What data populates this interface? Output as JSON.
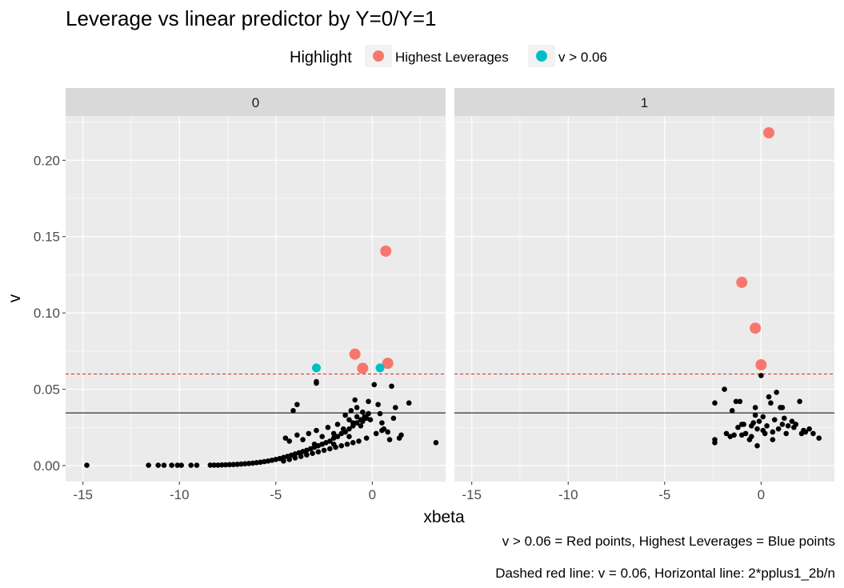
{
  "colors": {
    "panel_bg": "#EBEBEB",
    "strip_bg": "#D9D9D9",
    "grid": "#FFFFFF",
    "highest_leverages": "#F8766D",
    "v_gt": "#00BFC4",
    "point": "#000000",
    "dashed_line": "#E41A1C",
    "hline": "#000000"
  },
  "chart_data": {
    "type": "scatter",
    "title": "Leverage vs linear predictor by Y=0/Y=1",
    "xlabel": "xbeta",
    "ylabel": "v",
    "xlim": [
      -15.9,
      3.8
    ],
    "ylim": [
      -0.0105,
      0.229
    ],
    "x_ticks": [
      -15,
      -10,
      -5,
      0
    ],
    "x_tick_labels": [
      "-15",
      "-10",
      "-5",
      "0"
    ],
    "y_ticks": [
      0.0,
      0.05,
      0.1,
      0.15,
      0.2
    ],
    "y_tick_labels": [
      "0.00",
      "0.05",
      "0.10",
      "0.15",
      "0.20"
    ],
    "grid": true,
    "legend": {
      "title": "Highlight",
      "position": "top",
      "entries": [
        {
          "label": "Highest Leverages",
          "color": "#F8766D"
        },
        {
          "label": "v > 0.06",
          "color": "#00BFC4"
        }
      ]
    },
    "reference_lines": {
      "dashed_y": 0.06,
      "solid_y": 0.0345
    },
    "captions": [
      "v > 0.06 = Red points, Highest Leverages = Blue points",
      "Dashed red line: v = 0.06, Horizontal line: 2*pplus1_2b/n"
    ],
    "facets": [
      {
        "label": "0",
        "points": [
          [
            -14.8,
            0.0002
          ],
          [
            -11.6,
            0.0002
          ],
          [
            -11.1,
            0.0002
          ],
          [
            -10.8,
            0.0002
          ],
          [
            -10.4,
            0.0002
          ],
          [
            -10.1,
            0.0002
          ],
          [
            -9.9,
            0.0002
          ],
          [
            -9.4,
            0.0002
          ],
          [
            -9.1,
            0.0002
          ],
          [
            -8.4,
            0.0003
          ],
          [
            -8.2,
            0.0003
          ],
          [
            -8.0,
            0.0003
          ],
          [
            -7.8,
            0.0004
          ],
          [
            -7.6,
            0.0005
          ],
          [
            -7.4,
            0.0006
          ],
          [
            -7.2,
            0.0007
          ],
          [
            -7.0,
            0.0008
          ],
          [
            -6.8,
            0.001
          ],
          [
            -6.6,
            0.0012
          ],
          [
            -6.4,
            0.0014
          ],
          [
            -6.2,
            0.0016
          ],
          [
            -6.0,
            0.0019
          ],
          [
            -5.8,
            0.0022
          ],
          [
            -5.6,
            0.0026
          ],
          [
            -5.4,
            0.003
          ],
          [
            -5.2,
            0.0035
          ],
          [
            -5.0,
            0.004
          ],
          [
            -4.8,
            0.0046
          ],
          [
            -4.6,
            0.0053
          ],
          [
            -4.4,
            0.006
          ],
          [
            -4.2,
            0.0068
          ],
          [
            -4.0,
            0.0076
          ],
          [
            -3.8,
            0.0084
          ],
          [
            -3.6,
            0.0092
          ],
          [
            -3.4,
            0.01
          ],
          [
            -3.2,
            0.011
          ],
          [
            -3.0,
            0.012
          ],
          [
            -2.8,
            0.013
          ],
          [
            -2.6,
            0.014
          ],
          [
            -2.4,
            0.015
          ],
          [
            -2.2,
            0.016
          ],
          [
            -2.0,
            0.018
          ],
          [
            -1.8,
            0.019
          ],
          [
            -1.6,
            0.021
          ],
          [
            -1.4,
            0.022
          ],
          [
            -1.2,
            0.024
          ],
          [
            -1.0,
            0.026
          ],
          [
            -0.8,
            0.028
          ],
          [
            -0.6,
            0.03
          ],
          [
            -0.4,
            0.032
          ],
          [
            -0.2,
            0.034
          ],
          [
            -4.6,
            0.003
          ],
          [
            -4.3,
            0.004
          ],
          [
            -4.0,
            0.005
          ],
          [
            -3.7,
            0.006
          ],
          [
            -3.4,
            0.007
          ],
          [
            -3.1,
            0.008
          ],
          [
            -2.8,
            0.009
          ],
          [
            -2.5,
            0.01
          ],
          [
            -2.2,
            0.011
          ],
          [
            -1.9,
            0.012
          ],
          [
            -1.6,
            0.013
          ],
          [
            -1.3,
            0.014
          ],
          [
            -1.0,
            0.015
          ],
          [
            -0.7,
            0.016
          ],
          [
            -4.5,
            0.018
          ],
          [
            -4.3,
            0.016
          ],
          [
            -3.9,
            0.02
          ],
          [
            -3.6,
            0.017
          ],
          [
            -3.3,
            0.021
          ],
          [
            -3.0,
            0.014
          ],
          [
            -2.9,
            0.023
          ],
          [
            -2.6,
            0.019
          ],
          [
            -2.3,
            0.025
          ],
          [
            -2.0,
            0.021
          ],
          [
            -1.8,
            0.027
          ],
          [
            -1.5,
            0.024
          ],
          [
            -1.2,
            0.03
          ],
          [
            -1.0,
            0.028
          ],
          [
            -0.8,
            0.032
          ],
          [
            -0.5,
            0.029
          ],
          [
            -0.3,
            0.031
          ],
          [
            -4.1,
            0.036
          ],
          [
            -3.9,
            0.04
          ],
          [
            -2.9,
            0.054
          ],
          [
            -2.9,
            0.055
          ],
          [
            -1.4,
            0.033
          ],
          [
            -1.1,
            0.036
          ],
          [
            -0.9,
            0.043
          ],
          [
            -0.8,
            0.038
          ],
          [
            -0.5,
            0.035
          ],
          [
            -0.2,
            0.042
          ],
          [
            -0.1,
            0.03
          ],
          [
            0.1,
            0.053
          ],
          [
            0.3,
            0.04
          ],
          [
            0.4,
            0.034
          ],
          [
            0.5,
            0.028
          ],
          [
            0.6,
            0.024
          ],
          [
            0.8,
            0.022
          ],
          [
            1.0,
            0.052
          ],
          [
            1.1,
            0.031
          ],
          [
            1.2,
            0.038
          ],
          [
            1.4,
            0.018
          ],
          [
            1.5,
            0.02
          ],
          [
            1.9,
            0.041
          ],
          [
            3.3,
            0.015
          ],
          [
            -0.3,
            0.018
          ],
          [
            0.2,
            0.021
          ],
          [
            0.5,
            0.023
          ],
          [
            0.9,
            0.017
          ],
          [
            -1.2,
            0.019
          ],
          [
            -0.6,
            0.026
          ],
          [
            -2.0,
            0.014
          ]
        ],
        "highest_leverages": [
          [
            0.7,
            0.1405
          ],
          [
            -0.9,
            0.073
          ],
          [
            -0.5,
            0.0637
          ],
          [
            0.8,
            0.067
          ]
        ],
        "v_gt": [
          [
            -2.9,
            0.064
          ],
          [
            0.4,
            0.064
          ]
        ]
      },
      {
        "label": "1",
        "points": [
          [
            -2.4,
            0.041
          ],
          [
            -2.4,
            0.017
          ],
          [
            -2.4,
            0.015
          ],
          [
            -1.9,
            0.05
          ],
          [
            -1.8,
            0.021
          ],
          [
            -1.6,
            0.019
          ],
          [
            -1.5,
            0.036
          ],
          [
            -1.4,
            0.02
          ],
          [
            -1.2,
            0.025
          ],
          [
            -1.3,
            0.042
          ],
          [
            -1.1,
            0.042
          ],
          [
            -1.0,
            0.02
          ],
          [
            -0.9,
            0.027
          ],
          [
            -0.8,
            0.021
          ],
          [
            -0.6,
            0.017
          ],
          [
            -0.5,
            0.019
          ],
          [
            -0.4,
            0.028
          ],
          [
            -0.3,
            0.038
          ],
          [
            -0.3,
            0.033
          ],
          [
            -0.2,
            0.013
          ],
          [
            -0.2,
            0.024
          ],
          [
            -0.1,
            0.029
          ],
          [
            0.0,
            0.059
          ],
          [
            0.1,
            0.023
          ],
          [
            0.2,
            0.021
          ],
          [
            0.3,
            0.026
          ],
          [
            0.4,
            0.045
          ],
          [
            0.5,
            0.041
          ],
          [
            0.6,
            0.017
          ],
          [
            0.6,
            0.022
          ],
          [
            0.7,
            0.03
          ],
          [
            0.8,
            0.048
          ],
          [
            0.9,
            0.024
          ],
          [
            1.0,
            0.038
          ],
          [
            1.1,
            0.038
          ],
          [
            1.2,
            0.031
          ],
          [
            1.3,
            0.021
          ],
          [
            1.4,
            0.026
          ],
          [
            1.6,
            0.029
          ],
          [
            1.7,
            0.025
          ],
          [
            1.8,
            0.027
          ],
          [
            2.0,
            0.042
          ],
          [
            2.1,
            0.021
          ],
          [
            2.2,
            0.023
          ],
          [
            2.3,
            0.022
          ],
          [
            2.5,
            0.024
          ],
          [
            2.7,
            0.021
          ],
          [
            3.0,
            0.018
          ],
          [
            -1.0,
            0.027
          ],
          [
            0.1,
            0.032
          ],
          [
            -0.5,
            0.026
          ],
          [
            1.1,
            0.027
          ]
        ],
        "highest_leverages": [
          [
            0.4,
            0.218
          ],
          [
            -1.0,
            0.12
          ],
          [
            -0.3,
            0.09
          ],
          [
            0.0,
            0.066
          ]
        ],
        "v_gt": []
      }
    ]
  }
}
